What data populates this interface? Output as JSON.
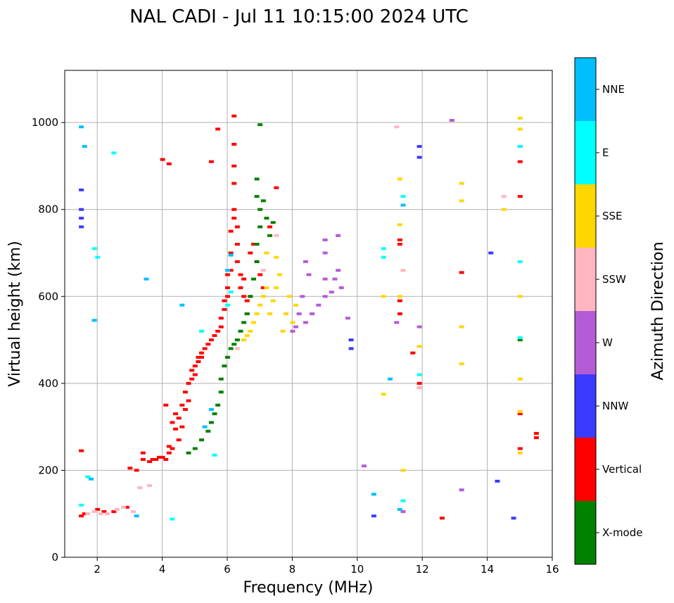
{
  "chart_data": {
    "type": "scatter",
    "title": "NAL CADI - Jul 11 10:15:00 2024 UTC",
    "xlabel": "Frequency (MHz)",
    "ylabel": "Virtual height (km)",
    "xlim": [
      1,
      16
    ],
    "ylim": [
      0,
      1120
    ],
    "xticks": [
      2,
      4,
      6,
      8,
      10,
      12,
      14,
      16
    ],
    "yticks": [
      0,
      200,
      400,
      600,
      800,
      1000
    ],
    "grid": true,
    "colorbar": {
      "label": "Azimuth Direction",
      "categories": [
        "X-mode",
        "Vertical",
        "NNW",
        "W",
        "SSW",
        "SSE",
        "E",
        "NNE"
      ],
      "colors": {
        "X-mode": "#008000",
        "Vertical": "#ff0000",
        "NNW": "#3a3aff",
        "W": "#b45bd6",
        "SSW": "#ffb6c1",
        "SSE": "#ffd700",
        "E": "#00ffff",
        "NNE": "#00bfff"
      }
    },
    "series": [
      {
        "name": "Vertical",
        "points": [
          [
            1.5,
            245
          ],
          [
            1.5,
            95
          ],
          [
            1.6,
            100
          ],
          [
            2.0,
            110
          ],
          [
            2.2,
            105
          ],
          [
            2.5,
            105
          ],
          [
            2.9,
            115
          ],
          [
            3.0,
            205
          ],
          [
            3.2,
            200
          ],
          [
            3.4,
            225
          ],
          [
            3.4,
            240
          ],
          [
            3.6,
            220
          ],
          [
            3.7,
            225
          ],
          [
            3.8,
            225
          ],
          [
            3.9,
            230
          ],
          [
            4.0,
            230
          ],
          [
            4.1,
            225
          ],
          [
            4.1,
            350
          ],
          [
            4.2,
            240
          ],
          [
            4.2,
            255
          ],
          [
            4.3,
            250
          ],
          [
            4.3,
            310
          ],
          [
            4.4,
            295
          ],
          [
            4.4,
            330
          ],
          [
            4.5,
            270
          ],
          [
            4.5,
            320
          ],
          [
            4.6,
            300
          ],
          [
            4.6,
            350
          ],
          [
            4.7,
            340
          ],
          [
            4.7,
            380
          ],
          [
            4.8,
            360
          ],
          [
            4.8,
            400
          ],
          [
            4.9,
            410
          ],
          [
            4.9,
            430
          ],
          [
            5.0,
            420
          ],
          [
            5.0,
            440
          ],
          [
            5.1,
            450
          ],
          [
            5.1,
            460
          ],
          [
            5.2,
            460
          ],
          [
            5.2,
            470
          ],
          [
            5.3,
            480
          ],
          [
            5.4,
            490
          ],
          [
            5.5,
            500
          ],
          [
            5.6,
            510
          ],
          [
            5.7,
            520
          ],
          [
            5.8,
            530
          ],
          [
            5.8,
            550
          ],
          [
            5.9,
            570
          ],
          [
            5.9,
            590
          ],
          [
            6.0,
            600
          ],
          [
            6.0,
            620
          ],
          [
            6.0,
            650
          ],
          [
            6.1,
            660
          ],
          [
            6.1,
            700
          ],
          [
            6.1,
            750
          ],
          [
            6.2,
            780
          ],
          [
            6.2,
            800
          ],
          [
            6.3,
            760
          ],
          [
            6.3,
            720
          ],
          [
            6.3,
            680
          ],
          [
            6.4,
            650
          ],
          [
            6.4,
            620
          ],
          [
            6.5,
            600
          ],
          [
            6.5,
            640
          ],
          [
            6.6,
            560
          ],
          [
            6.6,
            590
          ],
          [
            6.7,
            600
          ],
          [
            6.7,
            700
          ],
          [
            6.8,
            720
          ],
          [
            6.9,
            680
          ],
          [
            7.0,
            650
          ],
          [
            7.1,
            620
          ],
          [
            7.2,
            700
          ],
          [
            7.3,
            760
          ],
          [
            7.5,
            850
          ],
          [
            6.2,
            1015
          ],
          [
            6.2,
            950
          ],
          [
            6.2,
            900
          ],
          [
            6.2,
            860
          ],
          [
            5.7,
            985
          ],
          [
            4.0,
            915
          ],
          [
            4.2,
            905
          ],
          [
            5.5,
            910
          ],
          [
            11.3,
            720
          ],
          [
            11.3,
            590
          ],
          [
            11.3,
            560
          ],
          [
            11.3,
            730
          ],
          [
            11.7,
            470
          ],
          [
            11.9,
            400
          ],
          [
            11.9,
            390
          ],
          [
            12.6,
            90
          ],
          [
            13.2,
            655
          ],
          [
            15.0,
            910
          ],
          [
            15.0,
            830
          ],
          [
            15.0,
            330
          ],
          [
            15.0,
            250
          ],
          [
            15.5,
            285
          ],
          [
            15.5,
            275
          ]
        ]
      },
      {
        "name": "X-mode",
        "points": [
          [
            4.8,
            240
          ],
          [
            5.0,
            250
          ],
          [
            5.2,
            270
          ],
          [
            5.4,
            290
          ],
          [
            5.5,
            310
          ],
          [
            5.6,
            330
          ],
          [
            5.7,
            350
          ],
          [
            5.8,
            380
          ],
          [
            5.8,
            410
          ],
          [
            5.9,
            440
          ],
          [
            6.0,
            460
          ],
          [
            6.1,
            480
          ],
          [
            6.2,
            490
          ],
          [
            6.3,
            500
          ],
          [
            6.4,
            520
          ],
          [
            6.5,
            540
          ],
          [
            6.6,
            560
          ],
          [
            6.7,
            600
          ],
          [
            6.8,
            640
          ],
          [
            6.9,
            680
          ],
          [
            6.9,
            720
          ],
          [
            7.0,
            760
          ],
          [
            7.0,
            800
          ],
          [
            6.9,
            830
          ],
          [
            6.9,
            870
          ],
          [
            7.1,
            820
          ],
          [
            7.2,
            780
          ],
          [
            7.3,
            740
          ],
          [
            7.4,
            770
          ],
          [
            7.0,
            995
          ],
          [
            15.0,
            500
          ]
        ]
      },
      {
        "name": "NNW",
        "points": [
          [
            1.5,
            845
          ],
          [
            1.5,
            800
          ],
          [
            1.5,
            780
          ],
          [
            1.5,
            760
          ],
          [
            9.8,
            500
          ],
          [
            9.8,
            480
          ],
          [
            10.5,
            95
          ],
          [
            11.9,
            945
          ],
          [
            11.9,
            920
          ],
          [
            14.1,
            700
          ],
          [
            14.3,
            175
          ],
          [
            14.8,
            90
          ],
          [
            15.0,
            945
          ]
        ]
      },
      {
        "name": "W",
        "points": [
          [
            8.2,
            560
          ],
          [
            8.4,
            540
          ],
          [
            8.6,
            560
          ],
          [
            8.8,
            580
          ],
          [
            9.0,
            600
          ],
          [
            9.0,
            640
          ],
          [
            9.0,
            700
          ],
          [
            9.0,
            730
          ],
          [
            9.2,
            610
          ],
          [
            9.3,
            640
          ],
          [
            9.4,
            660
          ],
          [
            9.4,
            740
          ],
          [
            9.5,
            620
          ],
          [
            9.7,
            550
          ],
          [
            8.0,
            520
          ],
          [
            8.1,
            530
          ],
          [
            8.3,
            600
          ],
          [
            8.5,
            650
          ],
          [
            8.4,
            680
          ],
          [
            10.2,
            210
          ],
          [
            11.2,
            540
          ],
          [
            11.4,
            105
          ],
          [
            11.9,
            530
          ],
          [
            12.9,
            1005
          ],
          [
            13.2,
            155
          ]
        ]
      },
      {
        "name": "SSW",
        "points": [
          [
            1.7,
            100
          ],
          [
            1.9,
            105
          ],
          [
            2.1,
            100
          ],
          [
            2.3,
            100
          ],
          [
            2.6,
            110
          ],
          [
            2.8,
            115
          ],
          [
            3.1,
            105
          ],
          [
            3.3,
            160
          ],
          [
            3.6,
            165
          ],
          [
            6.3,
            480
          ],
          [
            6.5,
            500
          ],
          [
            7.1,
            660
          ],
          [
            7.5,
            740
          ],
          [
            11.2,
            990
          ],
          [
            11.4,
            660
          ],
          [
            11.9,
            390
          ],
          [
            14.5,
            830
          ]
        ]
      },
      {
        "name": "SSE",
        "points": [
          [
            6.5,
            500
          ],
          [
            6.6,
            510
          ],
          [
            6.7,
            520
          ],
          [
            6.8,
            540
          ],
          [
            6.9,
            560
          ],
          [
            7.0,
            580
          ],
          [
            7.1,
            600
          ],
          [
            7.2,
            620
          ],
          [
            7.3,
            560
          ],
          [
            7.4,
            590
          ],
          [
            7.5,
            620
          ],
          [
            7.6,
            650
          ],
          [
            7.7,
            520
          ],
          [
            7.8,
            560
          ],
          [
            7.9,
            600
          ],
          [
            8.0,
            540
          ],
          [
            8.1,
            580
          ],
          [
            7.5,
            690
          ],
          [
            7.2,
            700
          ],
          [
            10.8,
            600
          ],
          [
            10.8,
            375
          ],
          [
            11.3,
            870
          ],
          [
            11.3,
            765
          ],
          [
            11.3,
            600
          ],
          [
            11.4,
            200
          ],
          [
            11.9,
            485
          ],
          [
            13.2,
            860
          ],
          [
            13.2,
            820
          ],
          [
            13.2,
            530
          ],
          [
            13.2,
            445
          ],
          [
            14.5,
            800
          ],
          [
            15.0,
            1010
          ],
          [
            15.0,
            985
          ],
          [
            15.0,
            600
          ],
          [
            15.0,
            410
          ],
          [
            15.0,
            335
          ],
          [
            15.0,
            240
          ]
        ]
      },
      {
        "name": "E",
        "points": [
          [
            1.5,
            120
          ],
          [
            1.7,
            185
          ],
          [
            2.0,
            690
          ],
          [
            1.9,
            710
          ],
          [
            2.5,
            930
          ],
          [
            5.2,
            520
          ],
          [
            5.6,
            235
          ],
          [
            6.0,
            580
          ],
          [
            6.1,
            610
          ],
          [
            10.8,
            710
          ],
          [
            10.8,
            690
          ],
          [
            11.4,
            830
          ],
          [
            11.4,
            130
          ],
          [
            11.9,
            420
          ],
          [
            15.0,
            945
          ],
          [
            15.0,
            680
          ],
          [
            15.0,
            505
          ],
          [
            4.3,
            88
          ]
        ]
      },
      {
        "name": "NNE",
        "points": [
          [
            1.5,
            990
          ],
          [
            1.6,
            945
          ],
          [
            1.8,
            180
          ],
          [
            1.9,
            545
          ],
          [
            3.2,
            95
          ],
          [
            3.5,
            640
          ],
          [
            4.6,
            580
          ],
          [
            5.3,
            300
          ],
          [
            5.5,
            340
          ],
          [
            6.0,
            660
          ],
          [
            6.1,
            695
          ],
          [
            11.0,
            410
          ],
          [
            11.3,
            110
          ],
          [
            11.4,
            810
          ],
          [
            10.5,
            145
          ]
        ]
      }
    ],
    "annotations": [
      "Azimuth Direction"
    ]
  }
}
